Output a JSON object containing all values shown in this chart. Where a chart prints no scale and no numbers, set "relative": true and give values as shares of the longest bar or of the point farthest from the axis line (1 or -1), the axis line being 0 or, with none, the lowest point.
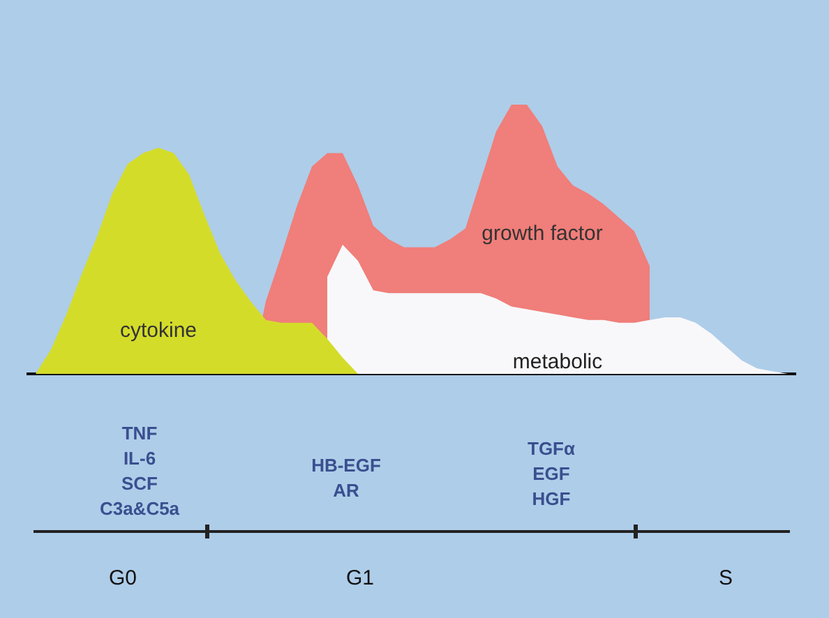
{
  "chart_data": {
    "type": "area",
    "relative": true,
    "tick_labels": false,
    "categories": [
      null,
      null,
      null,
      null,
      null,
      null,
      null,
      null,
      null,
      null,
      null,
      null,
      null,
      null,
      null,
      null,
      null,
      null,
      null,
      null,
      null,
      null,
      null,
      null,
      null,
      null,
      null,
      null,
      null,
      null,
      null,
      null,
      null,
      null,
      null,
      null,
      null,
      null,
      null,
      null,
      null,
      null,
      null,
      null,
      null,
      null,
      null,
      null,
      null,
      null
    ],
    "series": [
      {
        "name": "cytokine",
        "color": "#d4dc2a",
        "values": [
          0,
          0.09,
          0.22,
          0.37,
          0.51,
          0.67,
          0.78,
          0.82,
          0.84,
          0.82,
          0.74,
          0.59,
          0.45,
          0.35,
          0.27,
          0.2,
          0.19,
          0.19,
          0.19,
          0.13,
          0.06,
          0,
          null,
          null,
          null,
          null,
          null,
          null,
          null,
          null,
          null,
          null,
          null,
          null,
          null,
          null,
          null,
          null,
          null,
          null,
          null,
          null,
          null,
          null,
          null,
          null,
          null,
          null,
          null,
          null
        ]
      },
      {
        "name": "growth factor",
        "color": "#f07e7a",
        "values": [
          null,
          null,
          null,
          null,
          null,
          null,
          null,
          null,
          null,
          null,
          null,
          null,
          null,
          null,
          0,
          0.27,
          0.44,
          0.62,
          0.77,
          0.82,
          0.82,
          0.7,
          0.55,
          0.5,
          0.47,
          0.47,
          0.47,
          0.5,
          0.54,
          0.72,
          0.9,
          1,
          1,
          0.92,
          0.77,
          0.7,
          0.67,
          0.63,
          0.58,
          0.53,
          0.4,
          null,
          null,
          null,
          null,
          null,
          null,
          null,
          null,
          null
        ]
      },
      {
        "name": "metabolic",
        "color": "#f8f8fa",
        "values": [
          null,
          null,
          null,
          null,
          null,
          null,
          null,
          null,
          null,
          null,
          null,
          null,
          null,
          null,
          null,
          null,
          null,
          null,
          null,
          0.36,
          0.48,
          0.42,
          0.31,
          0.3,
          0.3,
          0.3,
          0.3,
          0.3,
          0.3,
          0.3,
          0.28,
          0.25,
          0.24,
          0.23,
          0.22,
          0.21,
          0.2,
          0.2,
          0.19,
          0.19,
          0.2,
          0.21,
          0.21,
          0.19,
          0.15,
          0.1,
          0.05,
          0.02,
          0.01,
          0
        ]
      }
    ],
    "annotations": [
      "TNF\nIL-6\nSCF\nC3a&C5a",
      "HB-EGF\nAR",
      "TGFα\nEGF\nHGF",
      "G0",
      "G1",
      "S"
    ]
  }
}
